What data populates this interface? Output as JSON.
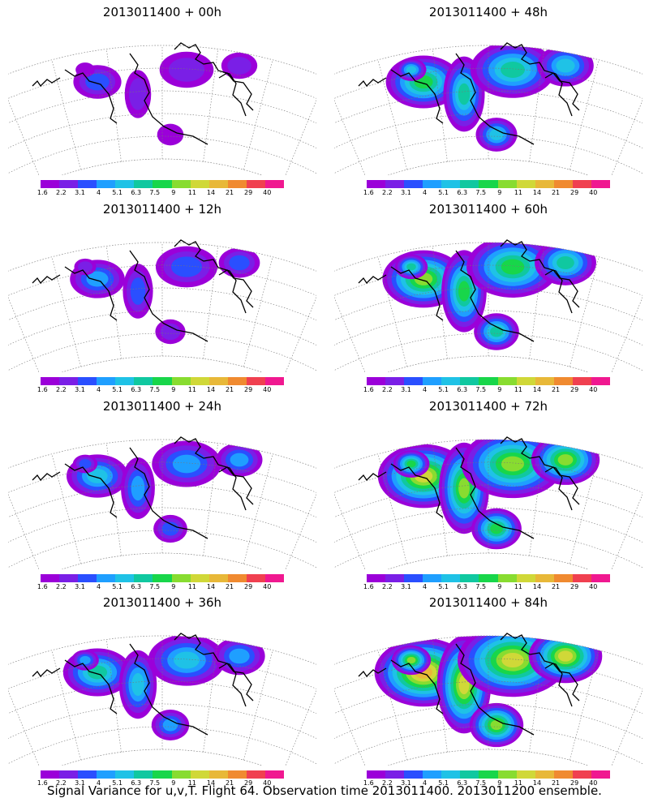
{
  "panels": [
    {
      "title": "2013011400 + 00h"
    },
    {
      "title": "2013011400 + 48h"
    },
    {
      "title": "2013011400 + 12h"
    },
    {
      "title": "2013011400 + 60h"
    },
    {
      "title": "2013011400 + 24h"
    },
    {
      "title": "2013011400 + 72h"
    },
    {
      "title": "2013011400 + 36h"
    },
    {
      "title": "2013011400 + 84h"
    }
  ],
  "colorbar": {
    "labels": [
      "1.6",
      "2.2",
      "3.1",
      "4",
      "5.1",
      "6.3",
      "7.5",
      "9",
      "11",
      "14",
      "21",
      "29",
      "40"
    ],
    "colors": [
      "#9b00d9",
      "#7a1fe6",
      "#2a4fff",
      "#1f9fff",
      "#1fc2e6",
      "#10c8a0",
      "#18d64a",
      "#88dc30",
      "#d0d838",
      "#e8b838",
      "#f08a30",
      "#f04050",
      "#f01890"
    ]
  },
  "caption": "Signal Variance for u,v,T. Flight 64. Observation time 2013011400. 2013011200 ensemble."
}
